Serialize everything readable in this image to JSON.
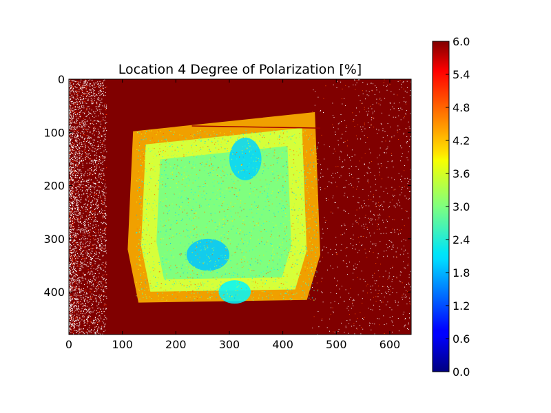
{
  "chart_data": {
    "type": "heatmap",
    "title": "Location 4 Degree of Polarization [%]",
    "xlabel": "",
    "ylabel": "",
    "image_shape": [
      480,
      640
    ],
    "xlim": [
      0,
      640
    ],
    "ylim": [
      480,
      0
    ],
    "x_ticks": [
      0,
      100,
      200,
      300,
      400,
      500,
      600
    ],
    "y_ticks": [
      0,
      100,
      200,
      300,
      400
    ],
    "x_tick_labels": [
      "0",
      "100",
      "200",
      "300",
      "400",
      "500",
      "600"
    ],
    "y_tick_labels": [
      "0",
      "100",
      "200",
      "300",
      "400"
    ],
    "colormap": "jet",
    "vmin": 0.0,
    "vmax": 6.0,
    "colorbar_ticks": [
      0.0,
      0.6,
      1.2,
      1.8,
      2.4,
      3.0,
      3.6,
      4.2,
      4.8,
      5.4,
      6.0
    ],
    "colorbar_tick_labels": [
      "0.0",
      "0.6",
      "1.2",
      "1.8",
      "2.4",
      "3.0",
      "3.6",
      "4.2",
      "4.8",
      "5.4",
      "6.0"
    ],
    "colors": {
      "background": "#800000",
      "sample_center": "#7fff7f",
      "noise": "#ffffff"
    },
    "features": {
      "sample_region_polygon": [
        [
          120,
          98
        ],
        [
          460,
          62
        ],
        [
          470,
          330
        ],
        [
          445,
          415
        ],
        [
          130,
          420
        ],
        [
          110,
          320
        ]
      ],
      "high_value_line": [
        [
          230,
          88
        ],
        [
          470,
          92
        ]
      ],
      "low_value_patches": [
        {
          "x": 330,
          "y": 150,
          "rx": 30,
          "ry": 40,
          "value": 2.0
        },
        {
          "x": 260,
          "y": 330,
          "rx": 40,
          "ry": 30,
          "value": 1.9
        },
        {
          "x": 310,
          "y": 400,
          "rx": 30,
          "ry": 22,
          "value": 2.2
        }
      ],
      "noise_columns_left": [
        0,
        70
      ],
      "noise_columns_right": [
        450,
        640
      ]
    }
  }
}
